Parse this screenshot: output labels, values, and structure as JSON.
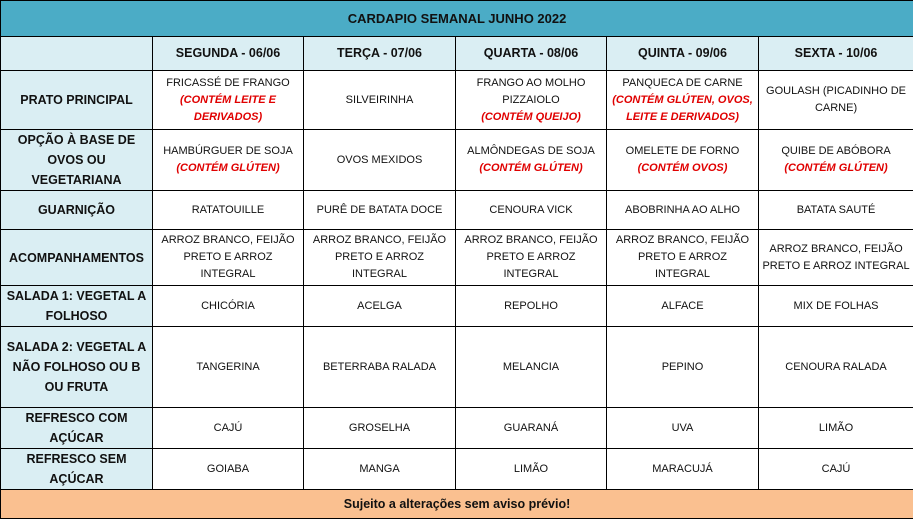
{
  "title": "CARDAPIO SEMANAL JUNHO 2022",
  "days": [
    "SEGUNDA - 06/06",
    "TERÇA - 07/06",
    "QUARTA - 08/06",
    "QUINTA - 09/06",
    "SEXTA - 10/06"
  ],
  "rows": [
    {
      "label": "PRATO PRINCIPAL",
      "cells": [
        {
          "text": "FRICASSÉ DE FRANGO",
          "note": "(CONTÉM LEITE E DERIVADOS)"
        },
        {
          "text": "SILVEIRINHA"
        },
        {
          "text": "FRANGO AO MOLHO PIZZAIOLO",
          "note": "(CONTÉM QUEIJO)"
        },
        {
          "text": "PANQUECA DE CARNE",
          "note": "(CONTÉM GLÚTEN, OVOS, LEITE E DERIVADOS)"
        },
        {
          "text": "GOULASH (PICADINHO DE CARNE)"
        }
      ]
    },
    {
      "label": "OPÇÃO À BASE DE OVOS OU VEGETARIANA",
      "cells": [
        {
          "text": "HAMBÚRGUER DE SOJA",
          "note": "(CONTÉM GLÚTEN)"
        },
        {
          "text": "OVOS MEXIDOS"
        },
        {
          "text": "ALMÔNDEGAS DE SOJA",
          "note": "(CONTÉM GLÚTEN)"
        },
        {
          "text": "OMELETE DE FORNO",
          "note": "(CONTÉM OVOS)"
        },
        {
          "text": "QUIBE DE ABÓBORA",
          "note": "(CONTÉM GLÚTEN)"
        }
      ]
    },
    {
      "label": "GUARNIÇÃO",
      "cells": [
        {
          "text": "RATATOUILLE"
        },
        {
          "text": "PURÊ DE BATATA DOCE"
        },
        {
          "text": "CENOURA VICK"
        },
        {
          "text": "ABOBRINHA AO ALHO"
        },
        {
          "text": "BATATA SAUTÉ"
        }
      ]
    },
    {
      "label": "ACOMPANHAMENTOS",
      "cells": [
        {
          "text": "ARROZ BRANCO, FEIJÃO PRETO E ARROZ INTEGRAL"
        },
        {
          "text": "ARROZ BRANCO, FEIJÃO PRETO E ARROZ INTEGRAL"
        },
        {
          "text": "ARROZ BRANCO, FEIJÃO PRETO E ARROZ INTEGRAL"
        },
        {
          "text": "ARROZ BRANCO, FEIJÃO PRETO E ARROZ INTEGRAL"
        },
        {
          "text": "ARROZ BRANCO, FEIJÃO PRETO E ARROZ INTEGRAL"
        }
      ]
    },
    {
      "label": "SALADA 1: VEGETAL A FOLHOSO",
      "cells": [
        {
          "text": "CHICÓRIA"
        },
        {
          "text": "ACELGA"
        },
        {
          "text": "REPOLHO"
        },
        {
          "text": "ALFACE"
        },
        {
          "text": "MIX DE FOLHAS"
        }
      ]
    },
    {
      "label": "SALADA 2: VEGETAL A NÃO FOLHOSO OU B OU FRUTA",
      "cells": [
        {
          "text": "TANGERINA"
        },
        {
          "text": "BETERRABA RALADA"
        },
        {
          "text": "MELANCIA"
        },
        {
          "text": "PEPINO"
        },
        {
          "text": "CENOURA RALADA"
        }
      ]
    },
    {
      "label": "REFRESCO COM AÇÚCAR",
      "cells": [
        {
          "text": "CAJÚ"
        },
        {
          "text": "GROSELHA"
        },
        {
          "text": "GUARANÁ"
        },
        {
          "text": "UVA"
        },
        {
          "text": "LIMÃO"
        }
      ]
    },
    {
      "label": "REFRESCO SEM AÇÚCAR",
      "cells": [
        {
          "text": "GOIABA"
        },
        {
          "text": "MANGA"
        },
        {
          "text": "LIMÃO"
        },
        {
          "text": "MARACUJÁ"
        },
        {
          "text": "CAJÚ"
        }
      ]
    }
  ],
  "footer": "Sujeito a alterações sem aviso prévio!",
  "colors": {
    "title_bg": "#4bacc6",
    "header_bg": "#daeef3",
    "footer_bg": "#fac090",
    "allergen": "#e00000"
  }
}
